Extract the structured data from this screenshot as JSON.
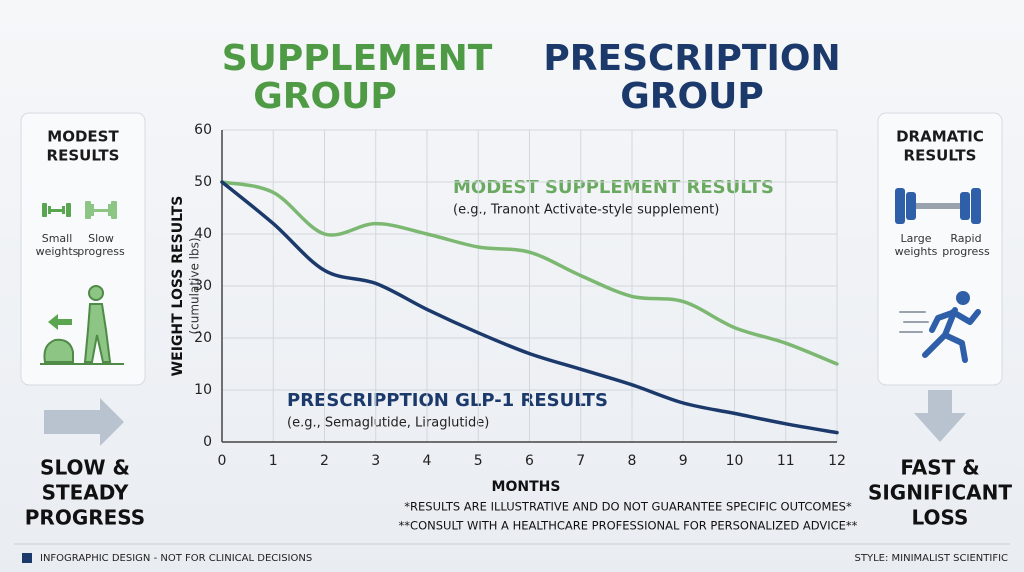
{
  "headers": {
    "left": [
      "SUPPLEMENT",
      "GROUP"
    ],
    "right": [
      "PRESCRIPTION",
      "GROUP"
    ]
  },
  "left_panel": {
    "title": [
      "MODEST",
      "RESULTS"
    ],
    "icon_labels": [
      [
        "Small",
        "weights"
      ],
      [
        "Slow",
        "progress"
      ]
    ],
    "caption": [
      "SLOW &",
      "STEADY",
      "PROGRESS"
    ]
  },
  "right_panel": {
    "title": [
      "DRAMATIC",
      "RESULTS"
    ],
    "icon_labels": [
      [
        "Large",
        "weights"
      ],
      [
        "Rapid",
        "progress"
      ]
    ],
    "caption": [
      "FAST &",
      "SIGNIFICANT",
      "LOSS"
    ]
  },
  "footnotes": [
    "*RESULTS ARE ILLUSTRATIVE AND DO NOT GUARANTEE SPECIFIC OUTCOMES*",
    "**CONSULT WITH A HEALTHCARE PROFESSIONAL FOR PERSONALIZED ADVICE**"
  ],
  "footer": {
    "left": "INFOGRAPHIC DESIGN - NOT FOR CLINICAL DECISIONS",
    "right": "STYLE: MINIMALIST SCIENTIFIC"
  },
  "chart_data": {
    "type": "line",
    "x_label": "MONTHS",
    "y_label": "WEIGHT LOSS RESULTS",
    "y_sublabel": "(cumulative lbs)",
    "x": [
      0,
      1,
      2,
      3,
      4,
      5,
      6,
      7,
      8,
      9,
      10,
      11,
      12
    ],
    "series": [
      {
        "name": "MODEST SUPPLEMENT RESULTS",
        "note": "(e.g., Tranont Activate-style supplement)",
        "color": "#7cb872",
        "values": [
          50,
          48,
          40,
          42,
          40,
          37.5,
          36.5,
          32,
          28,
          27,
          22,
          19,
          15
        ]
      },
      {
        "name": "PRESCRIPPTION GLP-1 RESULTS",
        "note": "(e.g., Semaglutide, Liraglutide)",
        "color": "#1b3a6b",
        "values": [
          50,
          42,
          33,
          30.5,
          25.5,
          21,
          17,
          14,
          11,
          7.5,
          5.5,
          3.5,
          1.8
        ]
      }
    ],
    "xlim": [
      0,
      12
    ],
    "xticks": [
      0,
      1,
      2,
      3,
      4,
      5,
      6,
      7,
      8,
      9,
      10,
      11,
      12
    ],
    "ylim": [
      0,
      60
    ],
    "yticks": [
      0,
      10,
      20,
      30,
      40,
      50,
      60
    ],
    "grid": true
  }
}
